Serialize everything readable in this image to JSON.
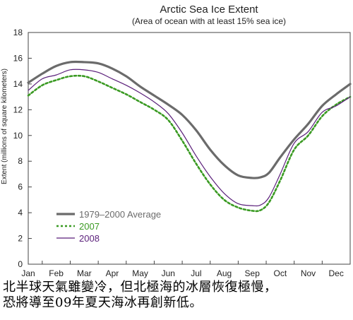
{
  "chart_data": {
    "type": "line",
    "title": "Arctic Sea Ice Extent",
    "subtitle": "(Area of ocean with at least 15% sea ice)",
    "ylabel": "Extent (millions of square kilometers)",
    "xlabel": "",
    "ylim": [
      0,
      18
    ],
    "yticks": [
      0,
      2,
      4,
      6,
      8,
      10,
      12,
      14,
      16,
      18
    ],
    "categories": [
      "Jan",
      "Feb",
      "Mar",
      "Apr",
      "May",
      "Jun",
      "Jul",
      "Aug",
      "Sep",
      "Oct",
      "Nov",
      "Dec"
    ],
    "legend_position": "bottom-left",
    "series": [
      {
        "name": "1979–2000 Average",
        "color": "#6b6b6b",
        "style": "solid-thick",
        "x": [
          0.0,
          0.5,
          1.0,
          1.5,
          2.0,
          2.5,
          3.0,
          3.5,
          4.0,
          4.5,
          5.0,
          5.5,
          6.0,
          6.5,
          7.0,
          7.5,
          8.0,
          8.3,
          8.6,
          9.0,
          9.5,
          10.0,
          10.5,
          11.0,
          11.5
        ],
        "values": [
          14.1,
          14.8,
          15.4,
          15.7,
          15.7,
          15.6,
          15.2,
          14.6,
          13.8,
          13.1,
          12.4,
          11.6,
          10.4,
          8.9,
          7.7,
          6.9,
          6.7,
          6.75,
          7.1,
          8.3,
          9.7,
          10.9,
          12.3,
          13.2,
          14.0
        ]
      },
      {
        "name": "2007",
        "color": "#3a9a22",
        "style": "dotted",
        "x": [
          0.0,
          0.5,
          1.0,
          1.5,
          2.0,
          2.5,
          3.0,
          3.5,
          4.0,
          4.5,
          5.0,
          5.5,
          6.0,
          6.5,
          7.0,
          7.5,
          8.0,
          8.3,
          8.6,
          9.0,
          9.5,
          10.0,
          10.5,
          11.0,
          11.5
        ],
        "values": [
          13.1,
          13.9,
          14.3,
          14.6,
          14.6,
          14.2,
          13.7,
          13.2,
          12.6,
          12.0,
          11.2,
          9.6,
          7.8,
          6.2,
          5.0,
          4.4,
          4.15,
          4.2,
          4.8,
          6.5,
          8.9,
          10.0,
          11.5,
          12.4,
          13.0
        ]
      },
      {
        "name": "2008",
        "color": "#5a1f7a",
        "style": "solid-thin",
        "x": [
          0.0,
          0.5,
          1.0,
          1.5,
          2.0,
          2.5,
          3.0,
          3.5,
          4.0,
          4.5,
          5.0,
          5.5,
          6.0,
          6.5,
          7.0,
          7.5,
          8.0,
          8.3,
          8.6,
          9.0,
          9.5,
          10.0,
          10.5,
          11.0,
          11.5
        ],
        "values": [
          13.5,
          14.4,
          14.7,
          15.1,
          15.1,
          14.9,
          14.4,
          13.9,
          13.3,
          12.6,
          11.7,
          10.2,
          8.4,
          6.8,
          5.5,
          4.7,
          4.55,
          4.6,
          5.2,
          7.0,
          9.4,
          10.3,
          11.8,
          12.3,
          13.0
        ]
      }
    ]
  },
  "caption": {
    "line1": "北半球天氣雖變冷，但北極海的冰層恢復極慢，",
    "line2": "恐將導至09年夏天海冰再創新低。"
  }
}
